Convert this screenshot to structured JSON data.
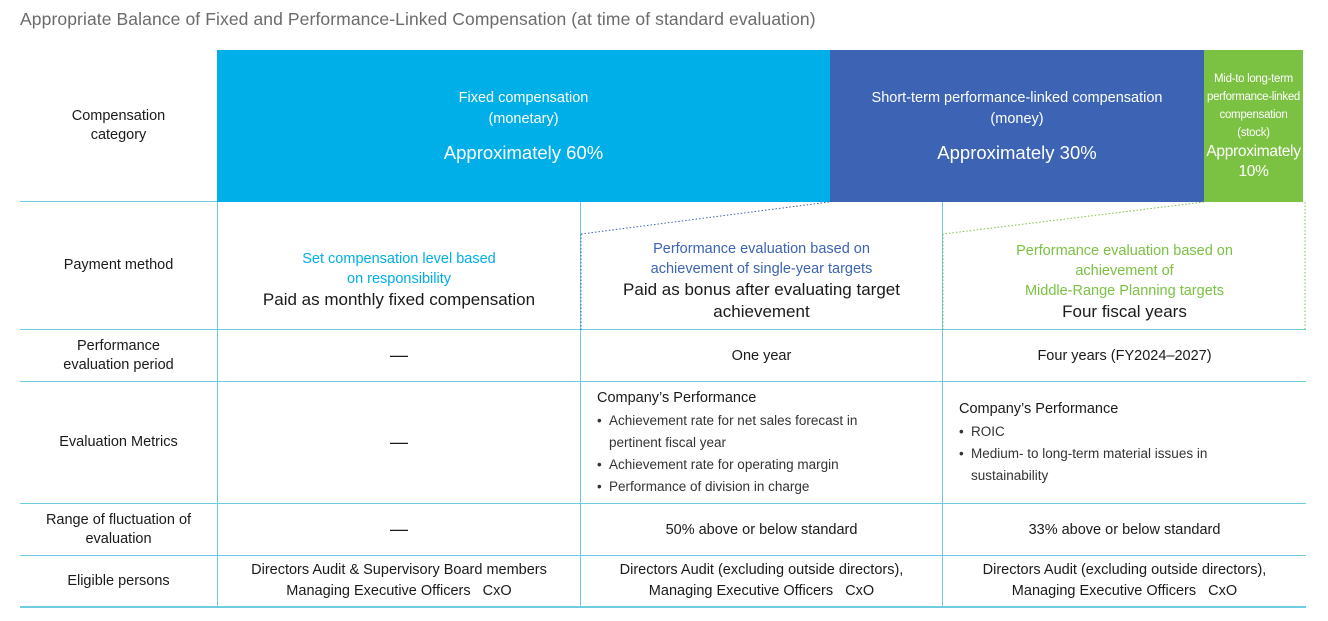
{
  "title": "Appropriate Balance of Fixed and Performance-Linked Compensation (at time of standard evaluation)",
  "header": {
    "label": "Compensation category",
    "fixed": {
      "name_lines": [
        "Fixed compensation",
        "(monetary)"
      ],
      "percent": "Approximately 60%",
      "color": "#00aee8"
    },
    "short": {
      "name_lines": [
        "Short-term performance-linked compensation",
        "(money)"
      ],
      "percent": "Approximately 30%",
      "color": "#3c63b4"
    },
    "long": {
      "name_lines": [
        "Mid-to long-term",
        "performance-linked",
        "compensation",
        "(stock)"
      ],
      "percent_lines": [
        "Approximately",
        "10%"
      ],
      "color": "#7bc142"
    }
  },
  "rows": {
    "payment": {
      "label": "Payment method",
      "fixed": {
        "highlight": [
          "Set compensation level based",
          "on responsibility"
        ],
        "main": [
          "Paid as monthly fixed compensation"
        ]
      },
      "short": {
        "highlight": [
          "Performance evaluation based on",
          "achievement of single-year targets"
        ],
        "main": [
          "Paid as bonus after evaluating target",
          "achievement"
        ]
      },
      "long": {
        "highlight": [
          "Performance evaluation based on",
          "achievement of",
          "Middle-Range Planning targets"
        ],
        "main": [
          "Four fiscal years"
        ]
      }
    },
    "period": {
      "label_lines": [
        "Performance",
        "evaluation period"
      ],
      "fixed": "—",
      "short": "One year",
      "long": "Four years (FY2024–2027)"
    },
    "metrics": {
      "label": "Evaluation Metrics",
      "fixed": "—",
      "short": {
        "heading": "Company’s Performance",
        "items": [
          "Achievement rate for net sales forecast in",
          "pertinent fiscal year",
          "Achievement rate for operating margin",
          "Performance of division in charge"
        ]
      },
      "long": {
        "heading": "Company’s Performance",
        "items": [
          "ROIC",
          "Medium- to long-term material issues in",
          "sustainability"
        ]
      }
    },
    "range": {
      "label_lines": [
        "Range of fluctuation of",
        "evaluation"
      ],
      "fixed": "—",
      "short": "50% above or below standard",
      "long": "33% above or below standard"
    },
    "eligible": {
      "label": "Eligible persons",
      "fixed": [
        "Directors Audit & Supervisory Board members",
        "Managing Executive Officers   CxO"
      ],
      "short": [
        "Directors Audit (excluding outside directors),",
        "Managing Executive Officers   CxO"
      ],
      "long": [
        "Directors Audit (excluding outside directors),",
        "Managing Executive Officers   CxO"
      ]
    }
  }
}
